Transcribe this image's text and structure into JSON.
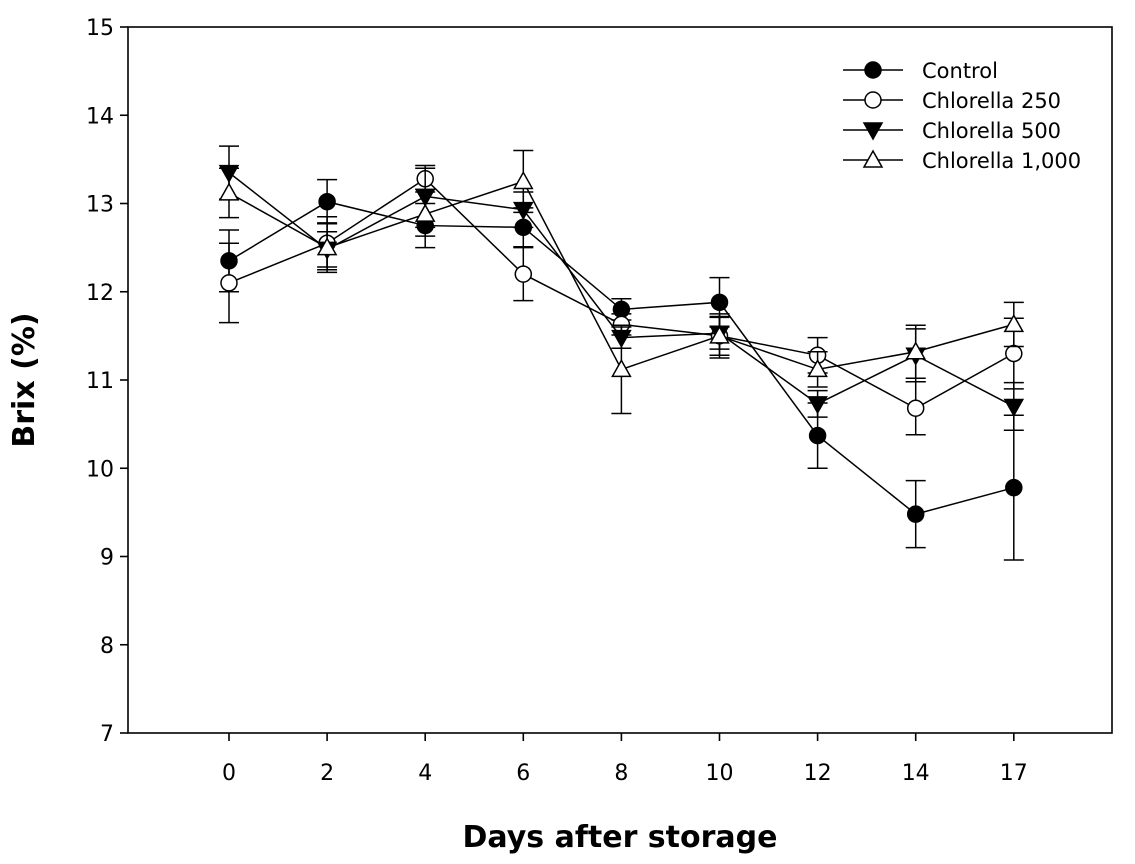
{
  "chart_data": {
    "type": "line",
    "title": "",
    "xlabel": "Days after storage",
    "ylabel": "Brix (%)",
    "categories": [
      "0",
      "2",
      "4",
      "6",
      "8",
      "10",
      "12",
      "14",
      "17"
    ],
    "ylim": [
      7,
      15
    ],
    "yticks": [
      "7",
      "8",
      "9",
      "10",
      "11",
      "12",
      "13",
      "14",
      "15"
    ],
    "grid": false,
    "legend_position": "top-right",
    "series": [
      {
        "name": "Control",
        "marker": "filled-circle",
        "values": [
          12.35,
          13.02,
          12.75,
          12.73,
          11.8,
          11.88,
          10.37,
          9.48,
          9.78
        ],
        "errors": [
          0.35,
          0.25,
          0.25,
          0.22,
          0.12,
          0.28,
          0.37,
          0.38,
          0.82
        ]
      },
      {
        "name": "Chlorella 250",
        "marker": "open-circle",
        "values": [
          12.1,
          12.55,
          13.28,
          12.2,
          11.63,
          11.5,
          11.28,
          10.68,
          11.3
        ],
        "errors": [
          0.45,
          0.3,
          0.12,
          0.3,
          0.12,
          0.22,
          0.2,
          0.3,
          0.4
        ]
      },
      {
        "name": "Chlorella 500",
        "marker": "filled-triangle-down",
        "values": [
          13.35,
          12.48,
          13.08,
          12.93,
          11.48,
          11.53,
          10.73,
          11.28,
          10.7
        ],
        "errors": [
          0.3,
          0.2,
          0.35,
          0.2,
          0.12,
          0.18,
          0.15,
          0.3,
          0.27
        ]
      },
      {
        "name": "Chlorella 1,000",
        "marker": "open-triangle-up",
        "values": [
          13.12,
          12.5,
          12.88,
          13.25,
          11.12,
          11.5,
          11.12,
          11.32,
          11.63
        ],
        "errors": [
          0.28,
          0.28,
          0.25,
          0.35,
          0.5,
          0.25,
          0.2,
          0.3,
          0.25
        ]
      }
    ]
  }
}
